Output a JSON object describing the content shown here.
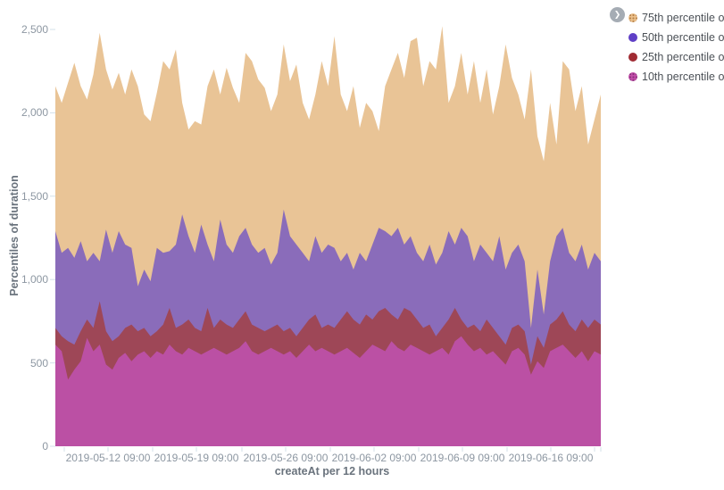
{
  "legend": {
    "expand_icon": "❯",
    "items": [
      {
        "label": "75th percentile o",
        "dot_color": "#ecc18c",
        "pattern": true,
        "pattern_dot_color": "#b8834a"
      },
      {
        "label": "50th percentile o",
        "dot_color": "#5f3fc6",
        "pattern": false,
        "pattern_dot_color": ""
      },
      {
        "label": "25th percentile o",
        "dot_color": "#a02b33",
        "pattern": false,
        "pattern_dot_color": ""
      },
      {
        "label": "10th percentile o",
        "dot_color": "#c24fa9",
        "pattern": true,
        "pattern_dot_color": "#8e2f7e"
      }
    ]
  },
  "axes": {
    "y_title": "Percentiles of duration",
    "x_title": "createAt per 12 hours"
  },
  "chart_data": {
    "type": "area",
    "stacked": false,
    "title": "",
    "xlabel": "createAt per 12 hours",
    "ylabel": "Percentiles of duration",
    "ylim": [
      0,
      2500
    ],
    "y_ticks": [
      0,
      500,
      1000,
      1500,
      2000,
      2500
    ],
    "x_tick_labels": [
      "2019-05-12 09:00",
      "2019-05-19 09:00",
      "2019-05-26 09:00",
      "2019-06-02 09:00",
      "2019-06-09 09:00",
      "2019-06-16 09:00"
    ],
    "grid": false,
    "legend_position": "top-right",
    "tick_color": "#d3e0ea",
    "series": [
      {
        "name": "75th percentile",
        "color": "#e9c496",
        "values": [
          2160,
          2060,
          2180,
          2300,
          2160,
          2080,
          2230,
          2480,
          2260,
          2140,
          2240,
          2110,
          2260,
          2160,
          1990,
          1950,
          2120,
          2310,
          2260,
          2380,
          2060,
          1900,
          1950,
          1930,
          2160,
          2260,
          2110,
          2270,
          2150,
          2060,
          2360,
          2310,
          2200,
          2150,
          2010,
          2110,
          2410,
          2190,
          2290,
          2060,
          1960,
          2110,
          2310,
          2160,
          2460,
          2110,
          2010,
          2160,
          1910,
          2060,
          2010,
          1890,
          2160,
          2260,
          2360,
          2210,
          2430,
          2450,
          2160,
          2310,
          2260,
          2520,
          2060,
          2160,
          2360,
          2110,
          2310,
          2060,
          2260,
          1990,
          2160,
          2410,
          2210,
          2110,
          1960,
          2260,
          1860,
          1710,
          2060,
          1810,
          2310,
          2260,
          2010,
          2160,
          1810,
          1960,
          2110
        ]
      },
      {
        "name": "50th percentile",
        "color": "#8a6cba",
        "values": [
          1290,
          1160,
          1190,
          1130,
          1230,
          1110,
          1160,
          1110,
          1300,
          1160,
          1290,
          1210,
          1190,
          960,
          1060,
          990,
          1190,
          1160,
          1170,
          1210,
          1390,
          1260,
          1160,
          1330,
          1210,
          1110,
          1360,
          1210,
          1160,
          1260,
          1310,
          1210,
          1160,
          1190,
          1090,
          1160,
          1420,
          1260,
          1210,
          1160,
          1110,
          1260,
          1160,
          1210,
          1190,
          1110,
          1160,
          1060,
          1160,
          1110,
          1210,
          1310,
          1290,
          1260,
          1310,
          1210,
          1260,
          1160,
          1110,
          1210,
          1090,
          1160,
          1290,
          1210,
          1310,
          1260,
          1110,
          1210,
          1160,
          1110,
          1260,
          1060,
          1160,
          1210,
          1110,
          710,
          1060,
          790,
          1110,
          1260,
          1310,
          1160,
          1110,
          1210,
          1060,
          1160,
          1110
        ]
      },
      {
        "name": "25th percentile",
        "color": "#9e4757",
        "values": [
          710,
          660,
          630,
          610,
          690,
          760,
          710,
          870,
          690,
          630,
          660,
          710,
          730,
          690,
          710,
          660,
          690,
          730,
          830,
          710,
          730,
          760,
          710,
          690,
          830,
          710,
          760,
          730,
          710,
          760,
          810,
          730,
          710,
          690,
          710,
          730,
          690,
          710,
          660,
          710,
          760,
          790,
          710,
          730,
          710,
          760,
          810,
          760,
          730,
          790,
          760,
          810,
          830,
          790,
          760,
          830,
          810,
          760,
          710,
          730,
          660,
          710,
          760,
          830,
          760,
          710,
          730,
          690,
          760,
          710,
          660,
          610,
          710,
          730,
          690,
          490,
          660,
          590,
          730,
          760,
          810,
          730,
          690,
          760,
          710,
          760,
          730
        ]
      },
      {
        "name": "10th percentile",
        "color": "#bb50a4",
        "values": [
          610,
          570,
          400,
          460,
          510,
          650,
          570,
          610,
          490,
          460,
          530,
          560,
          510,
          550,
          570,
          530,
          570,
          550,
          610,
          570,
          550,
          590,
          570,
          550,
          570,
          590,
          570,
          550,
          570,
          590,
          630,
          570,
          550,
          570,
          590,
          570,
          550,
          570,
          530,
          570,
          610,
          570,
          590,
          570,
          550,
          570,
          590,
          560,
          530,
          570,
          610,
          590,
          570,
          630,
          590,
          570,
          610,
          590,
          570,
          550,
          570,
          590,
          550,
          630,
          660,
          610,
          570,
          590,
          550,
          570,
          530,
          490,
          570,
          590,
          550,
          430,
          510,
          470,
          570,
          590,
          610,
          570,
          530,
          570,
          510,
          570,
          550
        ]
      }
    ]
  }
}
